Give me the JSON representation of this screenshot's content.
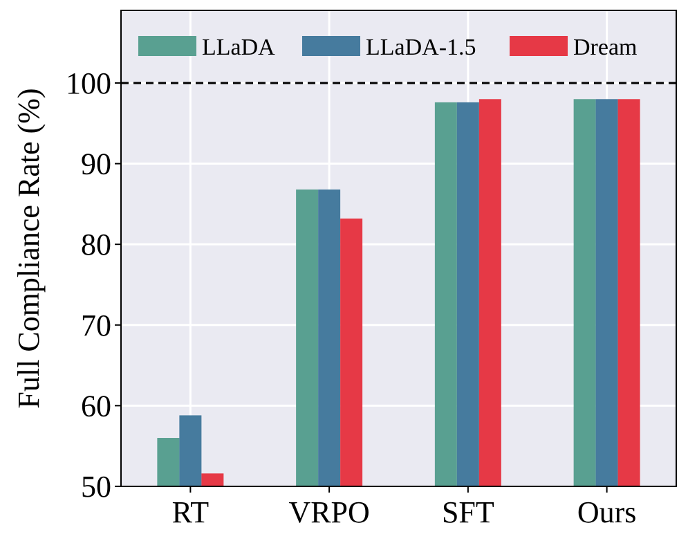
{
  "chart_data": {
    "type": "bar",
    "title": "",
    "xlabel": "",
    "ylabel": "Full Compliance Rate (%)",
    "categories": [
      "RT",
      "VRPO",
      "SFT",
      "Ours"
    ],
    "series": [
      {
        "name": "LLaDA",
        "color": "#59A091",
        "values": [
          56.0,
          86.8,
          97.6,
          98.0
        ]
      },
      {
        "name": "LLaDA-1.5",
        "color": "#467B9E",
        "values": [
          58.8,
          86.8,
          97.6,
          98.0
        ]
      },
      {
        "name": "Dream",
        "color": "#E63946",
        "values": [
          51.6,
          83.2,
          98.0,
          98.0
        ]
      }
    ],
    "ylim": [
      50,
      109
    ],
    "yticks": [
      50,
      60,
      70,
      80,
      90,
      100
    ],
    "reference_line": {
      "value": 100,
      "style": "dashed"
    },
    "grid": true,
    "legend_position": "top",
    "background": "#EAEAF2"
  }
}
